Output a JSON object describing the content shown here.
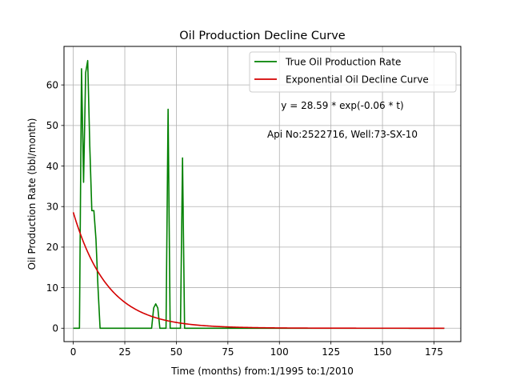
{
  "chart_data": {
    "type": "line",
    "title": "Oil Production Decline Curve",
    "xlabel": "Time (months) from:1/1995 to:1/2010",
    "ylabel": "Oil Production Rate (bbl/month)",
    "xlim": [
      -4.5,
      188
    ],
    "ylim": [
      -3.3,
      69.5
    ],
    "xticks": [
      0,
      25,
      50,
      75,
      100,
      125,
      150,
      175
    ],
    "yticks": [
      0,
      10,
      20,
      30,
      40,
      50,
      60
    ],
    "grid": true,
    "legend_position": "top-right",
    "annotations": [
      "y = 28.59 * exp(-0.06 * t)",
      "Api No:2522716, Well:73-SX-10"
    ],
    "series": [
      {
        "name": "True Oil Production Rate",
        "color": "#008000",
        "points": [
          [
            0,
            0
          ],
          [
            3,
            0
          ],
          [
            4,
            64
          ],
          [
            5,
            36
          ],
          [
            6,
            63
          ],
          [
            7,
            66
          ],
          [
            8,
            45
          ],
          [
            9,
            29
          ],
          [
            10,
            29
          ],
          [
            11,
            22
          ],
          [
            12,
            10
          ],
          [
            13,
            0
          ],
          [
            20,
            0
          ],
          [
            30,
            0
          ],
          [
            38,
            0
          ],
          [
            39,
            5
          ],
          [
            40,
            6
          ],
          [
            41,
            5
          ],
          [
            42,
            0
          ],
          [
            44,
            0
          ],
          [
            45,
            0
          ],
          [
            46,
            54
          ],
          [
            47,
            0
          ],
          [
            52,
            0
          ],
          [
            53,
            42
          ],
          [
            54,
            0
          ],
          [
            60,
            0
          ],
          [
            90,
            0
          ],
          [
            120,
            0
          ],
          [
            150,
            0
          ],
          [
            180,
            0
          ]
        ]
      },
      {
        "name": "Exponential Oil Decline Curve",
        "color": "#d40000",
        "formula": {
          "a": 28.59,
          "b": 0.06,
          "t_start": 0,
          "t_end": 180
        }
      }
    ]
  }
}
